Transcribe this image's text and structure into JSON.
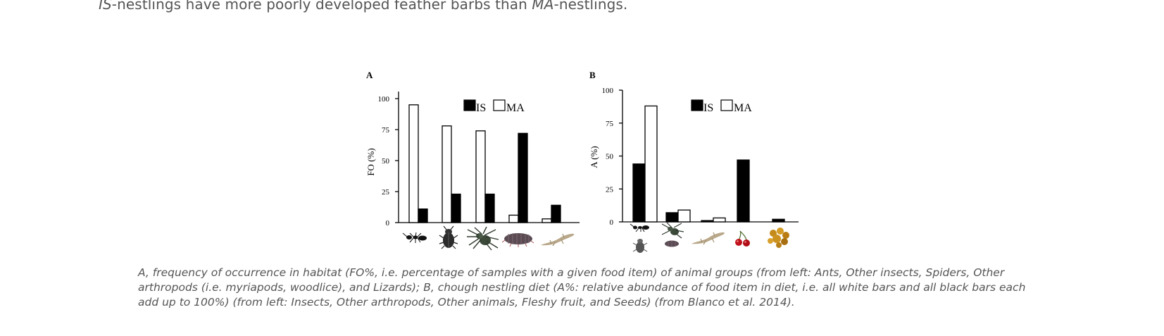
{
  "lead_text": {
    "part1": "IS",
    "part2": "-nestlings have more poorly developed feather barbs than ",
    "part3": "MA",
    "part4": "-nestlings."
  },
  "caption": "A, frequency of occurrence in habitat (FO%, i.e. percentage of samples with a given food item) of animal groups (from left: Ants, Other insects, Spiders, Other arthropods (i.e. myriapods, woodlice), and Lizards); B, chough nestling diet (A%: relative abundance of food item in diet, i.e. all white bars and all black bars each add up to 100%) (from left: Insects, Other arthropods, Other animals, Fleshy fruit, and Seeds) (from Blanco et al. 2014).",
  "colors": {
    "IS": "#000000",
    "MA": "#ffffff"
  },
  "chart_data": [
    {
      "panel_label": "A",
      "type": "bar",
      "ylabel": "FO (%)",
      "ylim": [
        0,
        100
      ],
      "yticks": [
        "0",
        "25",
        "50",
        "75",
        "100"
      ],
      "legend": [
        "IS",
        "MA"
      ],
      "legend_position": "top-center",
      "category_icons": [
        "ant-icon",
        "beetle-icon",
        "spider-icon",
        "woodlouse-icon",
        "lizard-icon"
      ],
      "series": [
        {
          "name": "MA",
          "values": [
            95,
            78,
            74,
            6,
            3
          ]
        },
        {
          "name": "IS",
          "values": [
            11,
            23,
            23,
            72,
            14
          ]
        }
      ]
    },
    {
      "panel_label": "B",
      "type": "bar",
      "ylabel": "A (%)",
      "ylim": [
        0,
        100
      ],
      "yticks": [
        "0",
        "25",
        "50",
        "75",
        "100"
      ],
      "legend": [
        "IS",
        "MA"
      ],
      "legend_position": "top-center",
      "category_icons": [
        "ant-beetle-icon",
        "spider-woodlouse-icon",
        "lizard-icon",
        "cherry-icon",
        "seeds-icon"
      ],
      "series": [
        {
          "name": "IS",
          "values": [
            44,
            7,
            1,
            47,
            2
          ]
        },
        {
          "name": "MA",
          "values": [
            88,
            9,
            3,
            0,
            0
          ]
        }
      ]
    }
  ]
}
